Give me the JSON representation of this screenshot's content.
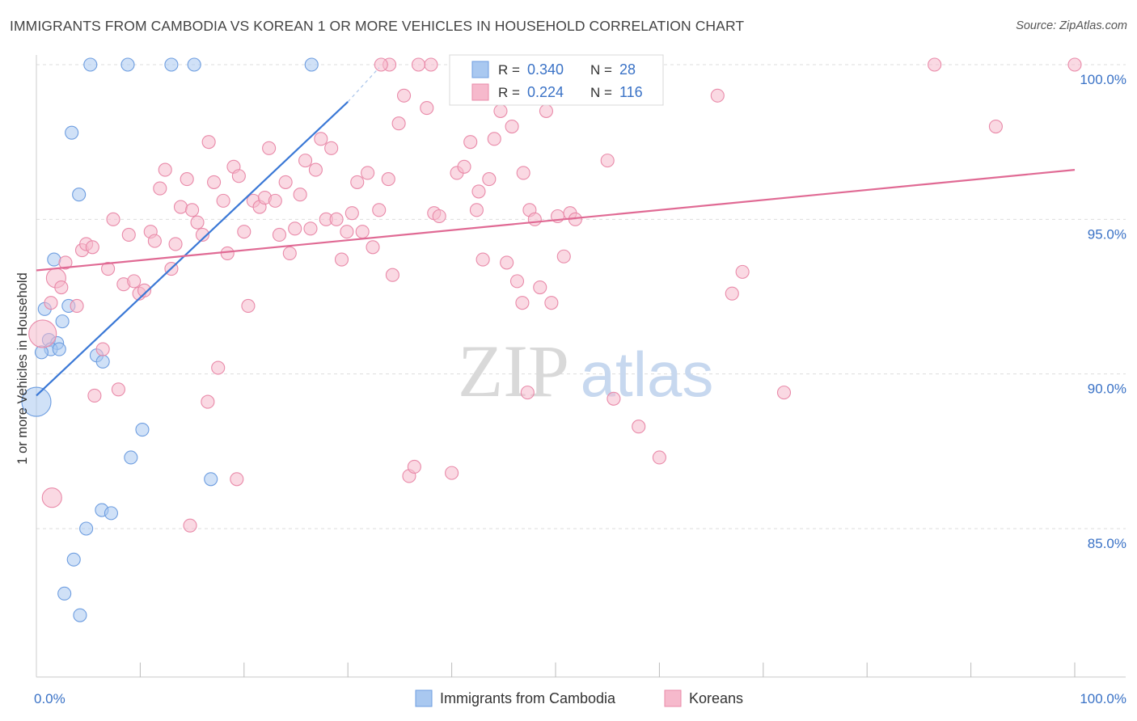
{
  "title": "IMMIGRANTS FROM CAMBODIA VS KOREAN 1 OR MORE VEHICLES IN HOUSEHOLD CORRELATION CHART",
  "source": "Source: ZipAtlas.com",
  "watermark": {
    "zip": "ZIP",
    "atlas": "atlas"
  },
  "colors": {
    "blue_fill": "#a9c8f0",
    "blue_stroke": "#6d9de0",
    "blue_line": "#3a78d6",
    "pink_fill": "#f6b9cc",
    "pink_stroke": "#e98aa9",
    "pink_line": "#e06a94",
    "axis_text": "#3a72c6",
    "grid": "#dddddd"
  },
  "legend_top": {
    "rows": [
      {
        "series": "blue",
        "r_label": "R = ",
        "r_value": "0.340",
        "n_label": "N = ",
        "n_value": "28"
      },
      {
        "series": "pink",
        "r_label": "R = ",
        "r_value": "0.224",
        "n_label": "N = ",
        "n_value": "116"
      }
    ]
  },
  "chart_data": {
    "type": "scatter",
    "title": "IMMIGRANTS FROM CAMBODIA VS KOREAN 1 OR MORE VEHICLES IN HOUSEHOLD CORRELATION CHART",
    "xlabel": "",
    "ylabel": "1 or more Vehicles in Household",
    "xlim": [
      0,
      100
    ],
    "ylim": [
      80.2,
      100.8
    ],
    "x_tick_labels": [
      {
        "value": 0,
        "label": "0.0%"
      },
      {
        "value": 100,
        "label": "100.0%"
      }
    ],
    "x_minor_ticks": [
      10,
      20,
      30,
      40,
      50,
      60,
      70,
      80,
      90,
      100
    ],
    "y_ticks": [
      {
        "value": 100,
        "label": "100.0%"
      },
      {
        "value": 95,
        "label": "95.0%"
      },
      {
        "value": 90,
        "label": "90.0%"
      },
      {
        "value": 85,
        "label": "85.0%"
      }
    ],
    "grid": true,
    "legend_position": "bottom-center",
    "series": [
      {
        "name": "Immigrants from Cambodia",
        "color": "blue",
        "R": 0.34,
        "N": 28,
        "trend": {
          "x0": 0,
          "y0": 89.3,
          "x1": 30,
          "y1": 98.8,
          "dashed_to_x": 33,
          "dashed_to_y": 99.9
        },
        "points": [
          [
            5.2,
            100.0
          ],
          [
            8.8,
            100.0
          ],
          [
            13.0,
            100.0
          ],
          [
            15.2,
            100.0
          ],
          [
            26.5,
            100.0
          ],
          [
            3.4,
            97.8
          ],
          [
            4.1,
            95.8
          ],
          [
            1.7,
            93.7
          ],
          [
            0.8,
            92.1
          ],
          [
            3.1,
            92.2
          ],
          [
            2.5,
            91.7
          ],
          [
            1.2,
            91.1
          ],
          [
            2.0,
            91.0
          ],
          [
            1.4,
            90.8
          ],
          [
            2.2,
            90.8
          ],
          [
            0.5,
            90.7
          ],
          [
            5.8,
            90.6
          ],
          [
            6.4,
            90.4
          ],
          [
            0.0,
            89.1,
            "large"
          ],
          [
            10.2,
            88.2
          ],
          [
            9.1,
            87.3
          ],
          [
            16.8,
            86.6
          ],
          [
            6.3,
            85.6
          ],
          [
            7.2,
            85.5
          ],
          [
            4.8,
            85.0
          ],
          [
            3.6,
            84.0
          ],
          [
            2.7,
            82.9
          ],
          [
            4.2,
            82.2
          ]
        ]
      },
      {
        "name": "Koreans",
        "color": "pink",
        "R": 0.224,
        "N": 116,
        "trend": {
          "x0": 0,
          "y0": 93.35,
          "x1": 100,
          "y1": 96.6
        },
        "points": [
          [
            0.6,
            91.3,
            "large"
          ],
          [
            1.5,
            86.0,
            "medium"
          ],
          [
            1.9,
            93.1,
            "medium"
          ],
          [
            1.4,
            92.3
          ],
          [
            2.4,
            92.8
          ],
          [
            2.8,
            93.6
          ],
          [
            3.9,
            92.2
          ],
          [
            4.4,
            94.0
          ],
          [
            4.8,
            94.2
          ],
          [
            5.4,
            94.1
          ],
          [
            5.6,
            89.3
          ],
          [
            6.4,
            90.8
          ],
          [
            6.9,
            93.4
          ],
          [
            7.4,
            95.0
          ],
          [
            7.9,
            89.5
          ],
          [
            8.4,
            92.9
          ],
          [
            8.9,
            94.5
          ],
          [
            9.4,
            93.0
          ],
          [
            9.9,
            92.6
          ],
          [
            10.4,
            92.7
          ],
          [
            11.0,
            94.6
          ],
          [
            11.4,
            94.3
          ],
          [
            11.9,
            96.0
          ],
          [
            12.4,
            96.6
          ],
          [
            13.0,
            93.4
          ],
          [
            13.4,
            94.2
          ],
          [
            13.9,
            95.4
          ],
          [
            14.5,
            96.3
          ],
          [
            15.0,
            95.3
          ],
          [
            15.5,
            94.9
          ],
          [
            16.0,
            94.5
          ],
          [
            16.6,
            97.5
          ],
          [
            17.1,
            96.2
          ],
          [
            17.5,
            90.2
          ],
          [
            18.0,
            95.6
          ],
          [
            18.4,
            93.9
          ],
          [
            19.0,
            96.7
          ],
          [
            19.5,
            96.4
          ],
          [
            20.0,
            94.6
          ],
          [
            20.4,
            92.2
          ],
          [
            20.9,
            95.6
          ],
          [
            21.5,
            95.4
          ],
          [
            22.0,
            95.7
          ],
          [
            22.4,
            97.3
          ],
          [
            23.0,
            95.6
          ],
          [
            23.4,
            94.5
          ],
          [
            24.0,
            96.2
          ],
          [
            24.4,
            93.9
          ],
          [
            24.9,
            94.7
          ],
          [
            25.4,
            95.8
          ],
          [
            25.9,
            96.9
          ],
          [
            26.4,
            94.7
          ],
          [
            26.9,
            96.6
          ],
          [
            27.4,
            97.6
          ],
          [
            27.9,
            95.0
          ],
          [
            28.4,
            97.3
          ],
          [
            28.9,
            95.0
          ],
          [
            29.4,
            93.7
          ],
          [
            29.9,
            94.6
          ],
          [
            30.4,
            95.2
          ],
          [
            30.9,
            96.2
          ],
          [
            31.4,
            94.6
          ],
          [
            31.9,
            96.5
          ],
          [
            32.4,
            94.1
          ],
          [
            33.0,
            95.3
          ],
          [
            33.9,
            96.3
          ],
          [
            34.3,
            93.2
          ],
          [
            34.9,
            98.1
          ],
          [
            35.4,
            99.0
          ],
          [
            35.9,
            86.7
          ],
          [
            36.4,
            87.0
          ],
          [
            37.6,
            98.6
          ],
          [
            38.3,
            95.2
          ],
          [
            38.8,
            95.1
          ],
          [
            40.5,
            96.5
          ],
          [
            41.2,
            96.7
          ],
          [
            41.8,
            97.5
          ],
          [
            42.4,
            95.3
          ],
          [
            43.0,
            93.7
          ],
          [
            43.6,
            96.3
          ],
          [
            44.1,
            97.6
          ],
          [
            44.7,
            98.5
          ],
          [
            45.3,
            93.6
          ],
          [
            45.8,
            98.0
          ],
          [
            46.3,
            93.0
          ],
          [
            46.9,
            96.5
          ],
          [
            47.5,
            95.3
          ],
          [
            48.0,
            95.0
          ],
          [
            48.5,
            92.8
          ],
          [
            49.1,
            98.5
          ],
          [
            49.6,
            92.3
          ],
          [
            50.2,
            95.1
          ],
          [
            50.8,
            93.8
          ],
          [
            51.4,
            95.2
          ],
          [
            51.9,
            95.0
          ],
          [
            55.0,
            96.9
          ],
          [
            55.6,
            89.2
          ],
          [
            58.0,
            88.3
          ],
          [
            60.0,
            87.3
          ],
          [
            65.6,
            99.0
          ],
          [
            67.0,
            92.6
          ],
          [
            68.0,
            93.3
          ],
          [
            72.0,
            89.4
          ],
          [
            86.5,
            100.0
          ],
          [
            92.4,
            98.0
          ],
          [
            100.0,
            100.0
          ],
          [
            40.0,
            86.8
          ],
          [
            38.0,
            100.0
          ],
          [
            34.0,
            100.0
          ],
          [
            33.2,
            100.0
          ],
          [
            36.8,
            100.0
          ],
          [
            14.8,
            85.1
          ],
          [
            16.5,
            89.1
          ],
          [
            19.3,
            86.6
          ],
          [
            46.8,
            92.3
          ],
          [
            42.6,
            95.9
          ],
          [
            47.3,
            89.4
          ]
        ]
      }
    ]
  },
  "legend_bottom": {
    "items": [
      {
        "series": "blue",
        "label": "Immigrants from Cambodia"
      },
      {
        "series": "pink",
        "label": "Koreans"
      }
    ]
  }
}
